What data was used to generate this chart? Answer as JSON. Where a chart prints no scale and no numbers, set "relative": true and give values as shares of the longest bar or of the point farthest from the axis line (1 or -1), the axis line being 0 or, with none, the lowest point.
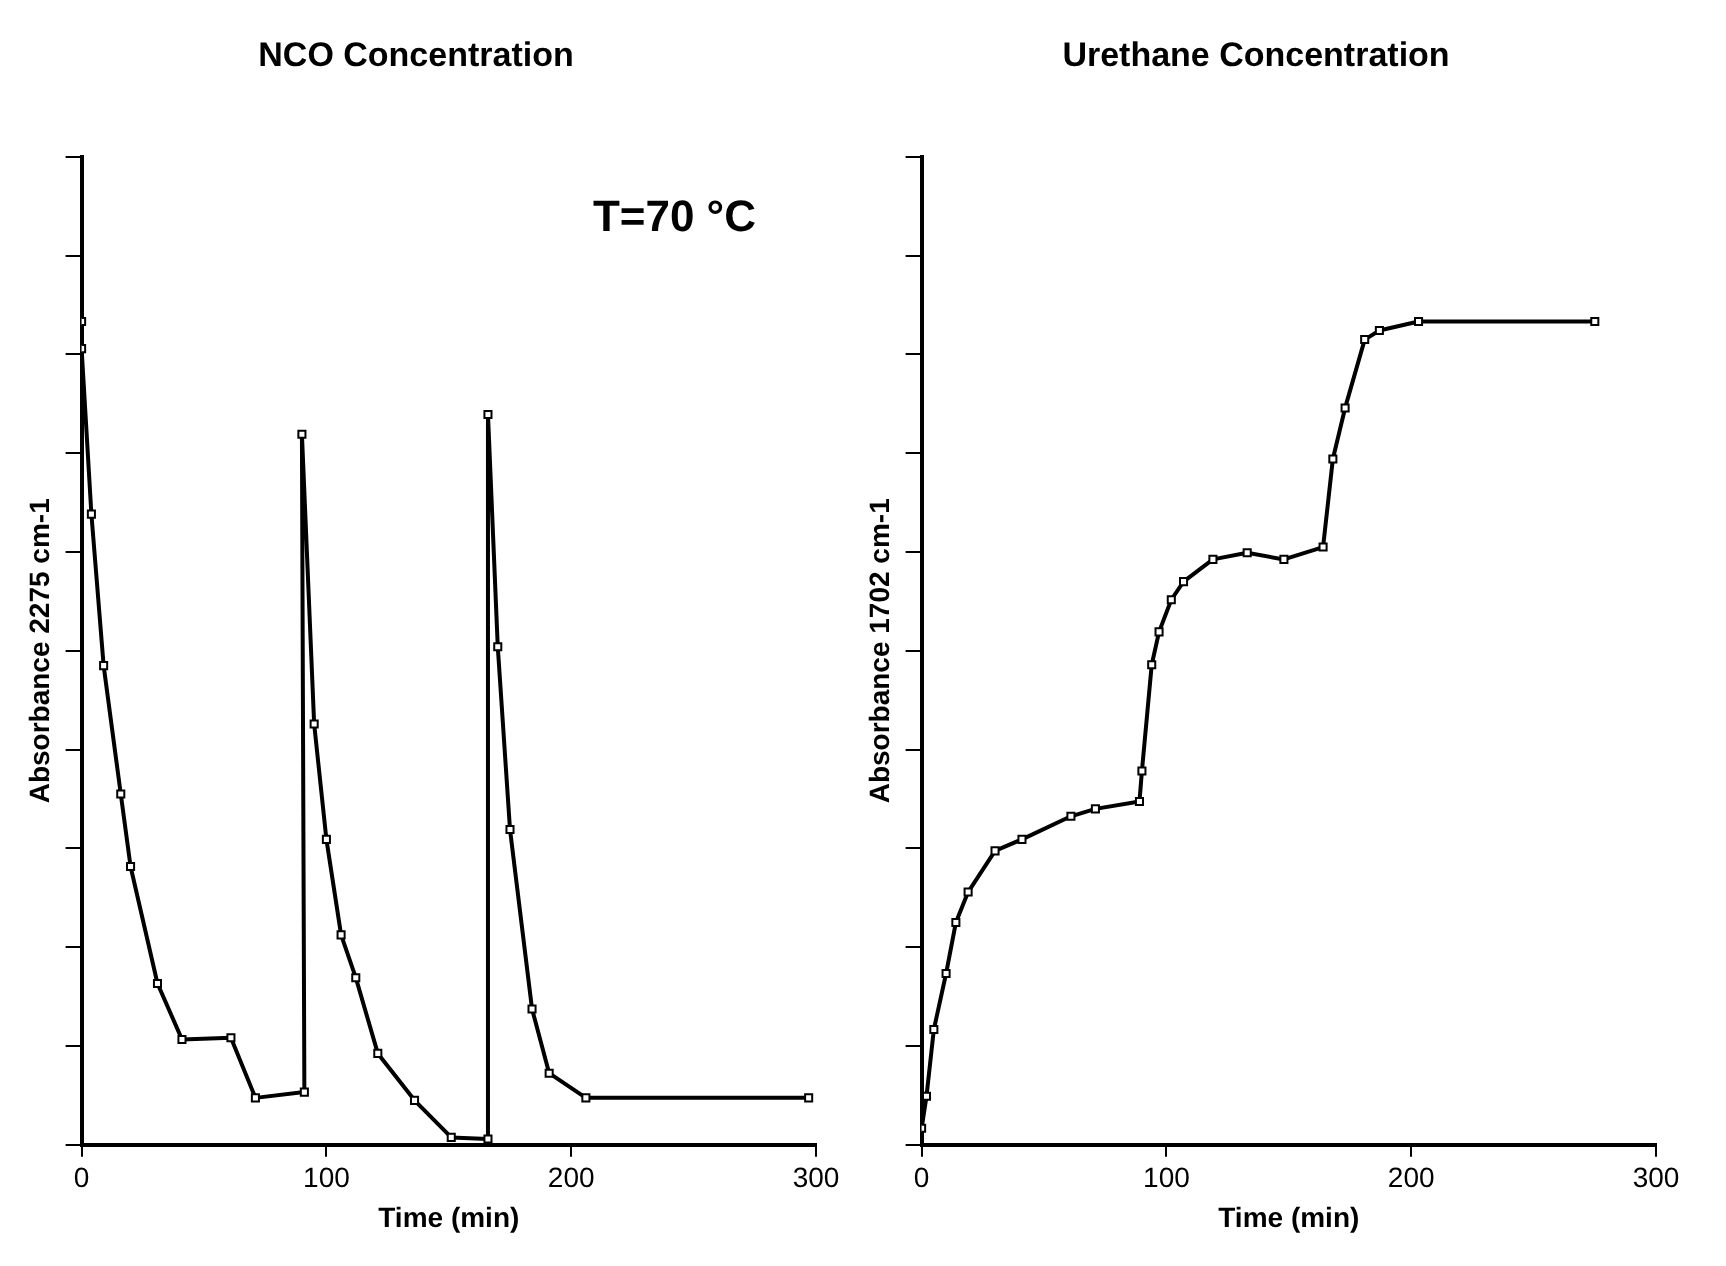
{
  "chart_data": [
    {
      "type": "line",
      "title": "NCO Concentration",
      "xlabel": "Time (min)",
      "ylabel": "Absorbance 2275 cm-1",
      "relative": true,
      "xlim": [
        0,
        300
      ],
      "xticks": [
        0,
        100,
        200,
        300
      ],
      "marker": "square",
      "grid": false,
      "legend": false,
      "annotations": [
        "T=70 °C"
      ],
      "series": [
        {
          "color": "#000000",
          "x": [
            0,
            0,
            4,
            9,
            16,
            20,
            31,
            41,
            61,
            71,
            91,
            90,
            95,
            100,
            106,
            112,
            121,
            136,
            151,
            166,
            166,
            170,
            175,
            184,
            191,
            206,
            297
          ],
          "values": [
            1,
            0.967,
            0.766,
            0.582,
            0.426,
            0.338,
            0.196,
            0.128,
            0.13,
            0.057,
            0.064,
            0.863,
            0.511,
            0.371,
            0.255,
            0.203,
            0.111,
            0.054,
            0.009,
            0.007,
            0.887,
            0.605,
            0.383,
            0.165,
            0.087,
            0.057,
            0.057
          ]
        }
      ]
    },
    {
      "type": "line",
      "title": "Urethane Concentration",
      "xlabel": "Time (min)",
      "ylabel": "Absorbance 1702 cm-1",
      "relative": true,
      "xlim": [
        0,
        300
      ],
      "xticks": [
        0,
        100,
        200,
        300
      ],
      "marker": "square",
      "grid": false,
      "legend": false,
      "series": [
        {
          "color": "#000000",
          "x": [
            0,
            2,
            5,
            10,
            14,
            19,
            30,
            41,
            61,
            71,
            89,
            90,
            94,
            97,
            102,
            107,
            119,
            133,
            148,
            164,
            168,
            173,
            181,
            187,
            203,
            275
          ],
          "values": [
            0.02,
            0.059,
            0.14,
            0.208,
            0.27,
            0.307,
            0.357,
            0.371,
            0.399,
            0.408,
            0.417,
            0.454,
            0.583,
            0.623,
            0.662,
            0.684,
            0.711,
            0.719,
            0.711,
            0.726,
            0.833,
            0.895,
            0.978,
            0.989,
            1,
            1
          ]
        }
      ]
    }
  ]
}
